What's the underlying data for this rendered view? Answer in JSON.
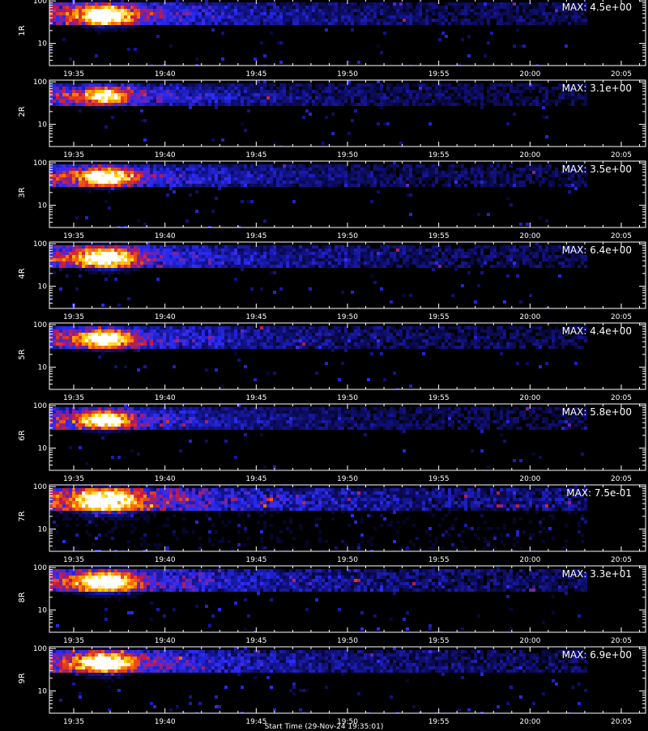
{
  "chart_data": {
    "type": "heatmap",
    "panels": [
      {
        "name": "1R",
        "max_label": "MAX: 4.5e+00",
        "peak_intensity": 0.95,
        "spread": 1.0,
        "noise": 0.35,
        "event_t": "19:36:40"
      },
      {
        "name": "2R",
        "max_label": "MAX: 3.1e+00",
        "peak_intensity": 0.8,
        "spread": 0.8,
        "noise": 0.35,
        "event_t": "19:36:40"
      },
      {
        "name": "3R",
        "max_label": "MAX: 3.5e+00",
        "peak_intensity": 0.95,
        "spread": 0.9,
        "noise": 0.35,
        "event_t": "19:36:40"
      },
      {
        "name": "4R",
        "max_label": "MAX: 6.4e+00",
        "peak_intensity": 1.0,
        "spread": 1.0,
        "noise": 0.4,
        "event_t": "19:36:40"
      },
      {
        "name": "5R",
        "max_label": "MAX: 4.4e+00",
        "peak_intensity": 1.0,
        "spread": 0.9,
        "noise": 0.4,
        "event_t": "19:36:40"
      },
      {
        "name": "6R",
        "max_label": "MAX: 5.8e+00",
        "peak_intensity": 1.0,
        "spread": 0.85,
        "noise": 0.3,
        "event_t": "19:36:40"
      },
      {
        "name": "7R",
        "max_label": "MAX: 7.5e-01",
        "peak_intensity": 0.95,
        "spread": 1.2,
        "noise": 0.75,
        "event_t": "19:36:40"
      },
      {
        "name": "8R",
        "max_label": "MAX: 3.3e+01",
        "peak_intensity": 1.0,
        "spread": 1.0,
        "noise": 0.55,
        "event_t": "19:36:40"
      },
      {
        "name": "9R",
        "max_label": "MAX: 6.9e+00",
        "peak_intensity": 1.0,
        "spread": 1.0,
        "noise": 0.5,
        "event_t": "19:36:40"
      }
    ],
    "x_ticks": [
      "19:35",
      "19:40",
      "19:45",
      "19:50",
      "19:55",
      "20:00",
      "20:05"
    ],
    "y_ticks": [
      "100",
      "10"
    ],
    "ylim": [
      3,
      110
    ],
    "log_y": true,
    "data_end_time": "20:03",
    "colormap": [
      "#000000",
      "#10107a",
      "#2a2cff",
      "#c81a40",
      "#ff6a00",
      "#ffd400",
      "#ffffff"
    ]
  },
  "footer_label": "Start Time (29-Nov-24 19:35:01)"
}
